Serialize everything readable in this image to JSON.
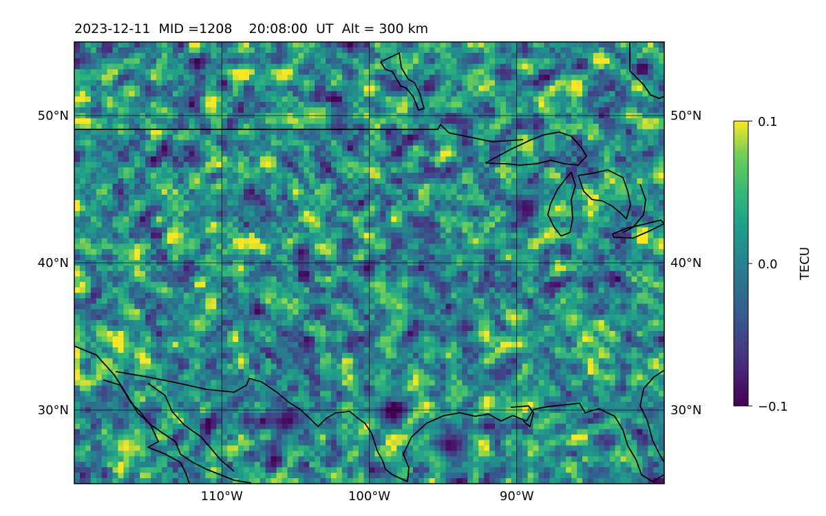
{
  "title": "2023-12-11  MID =1208    20:08:00  UT  Alt = 300 km",
  "map": {
    "lat_range": [
      25,
      55
    ],
    "lon_range": [
      -120,
      -80
    ],
    "lat_ticks": [
      {
        "value": 30,
        "label": "30°N"
      },
      {
        "value": 40,
        "label": "40°N"
      },
      {
        "value": 50,
        "label": "50°N"
      }
    ],
    "lon_ticks": [
      {
        "value": -110,
        "label": "110°W"
      },
      {
        "value": -100,
        "label": "100°W"
      },
      {
        "value": -90,
        "label": "90°W"
      }
    ],
    "gridlines": true,
    "grid_color": "#000000",
    "coastline_color": "#000000",
    "cells": {
      "cols": 108,
      "rows": 81,
      "seed": 12081208
    },
    "hotspots": [
      {
        "lon": -116.6,
        "lat": 27.6,
        "value": 0.1
      },
      {
        "lon": -103.9,
        "lat": 50.0,
        "value": 0.09
      },
      {
        "lon": -86.2,
        "lat": 36.2,
        "value": 0.09
      },
      {
        "lon": -95.5,
        "lat": 26.8,
        "value": 0.08
      },
      {
        "lon": -94.5,
        "lat": 27.6,
        "value": -0.1
      },
      {
        "lon": -105.5,
        "lat": 29.3,
        "value": -0.1
      },
      {
        "lon": -89.3,
        "lat": 43.8,
        "value": -0.09
      }
    ]
  },
  "colorbar": {
    "label": "TECU",
    "min": -0.1,
    "max": 0.1,
    "colormap": "viridis",
    "ticks": [
      {
        "value": 0.1,
        "label": "0.1"
      },
      {
        "value": 0.0,
        "label": "0.0"
      },
      {
        "value": -0.1,
        "label": "−0.1"
      }
    ]
  }
}
